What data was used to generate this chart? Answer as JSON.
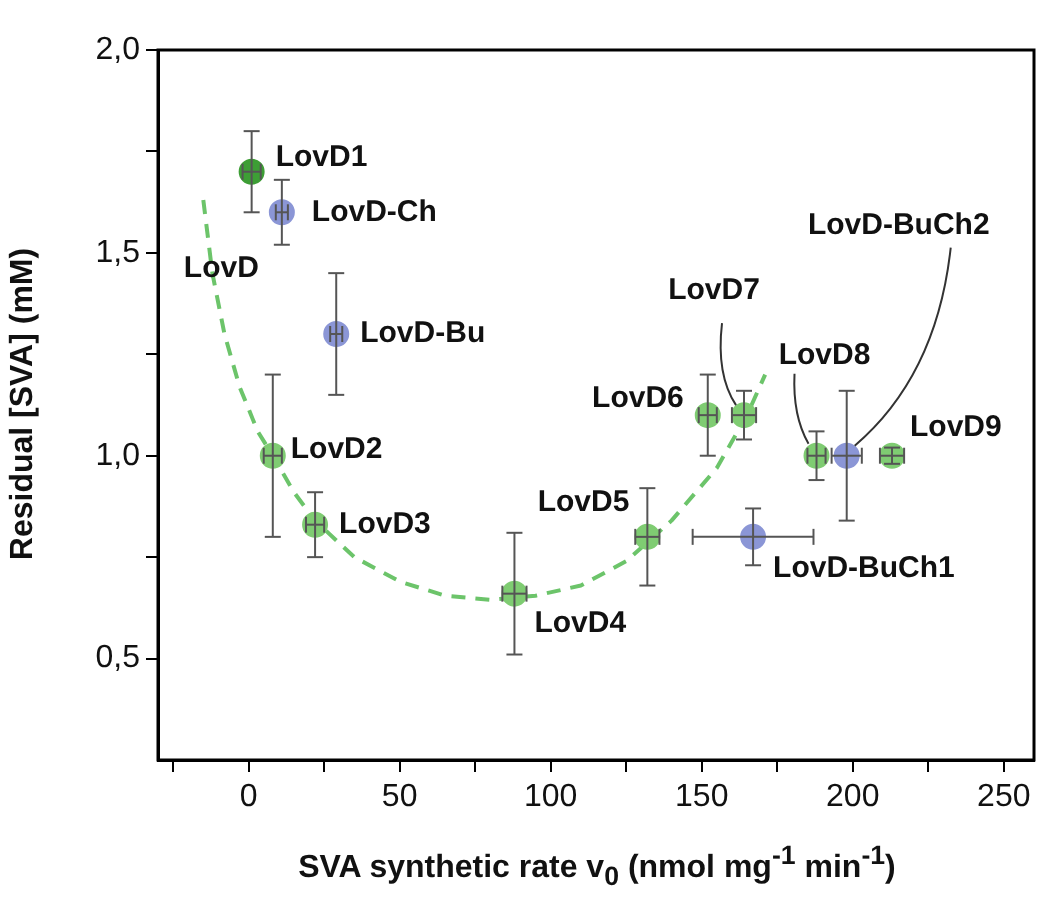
{
  "chart_data": {
    "type": "scatter",
    "xlabel": "SVA synthetic rate v$_{0}$ (nmol mg$^{-1}$ min$^{-1}$)",
    "ylabel": "Residual [SVA] (mM)",
    "xlim": [
      -30,
      260
    ],
    "ylim": [
      0.25,
      2.0
    ],
    "xticks": [
      {
        "value": -25,
        "label": null
      },
      0,
      {
        "value": 25,
        "label": null
      },
      50,
      {
        "value": 75,
        "label": null
      },
      100,
      {
        "value": 125,
        "label": null
      },
      150,
      {
        "value": 175,
        "label": null
      },
      200,
      {
        "value": 225,
        "label": null
      },
      250
    ],
    "yticks": [
      {
        "value": 0.5,
        "label": "0,5"
      },
      {
        "value": 0.75,
        "label": null
      },
      {
        "value": 1.0,
        "label": "1,0"
      },
      {
        "value": 1.25,
        "label": null
      },
      {
        "value": 1.5,
        "label": "1,5"
      },
      {
        "value": 1.75,
        "label": null
      },
      {
        "value": 2.0,
        "label": "2,0"
      }
    ],
    "grid": false,
    "legend": false,
    "marker": "circle",
    "series": [
      {
        "x": [
          1,
          11,
          29,
          8,
          22,
          88,
          132,
          167,
          152,
          164,
          188,
          198,
          213
        ],
        "values": [
          1.7,
          1.6,
          1.3,
          1.0,
          0.83,
          0.66,
          0.8,
          0.8,
          1.1,
          1.1,
          1.0,
          1.0,
          1.0
        ],
        "colors": [
          "#3d9e35",
          "#8b96d6",
          "#8b96d6",
          "#7fcc72",
          "#7fcc72",
          "#7fcc72",
          "#7fcc72",
          "#8b96d6",
          "#7fcc72",
          "#7fcc72",
          "#7fcc72",
          "#8b96d6",
          "#7fcc72"
        ],
        "errors": [
          0.1,
          0.08,
          0.15,
          0.2,
          0.08,
          0.15,
          0.12,
          0.07,
          0.1,
          0.06,
          0.06,
          0.16,
          0.02
        ],
        "xerrors": [
          3,
          2,
          2,
          3,
          3,
          4,
          4,
          20,
          3,
          4,
          3,
          5,
          4
        ]
      },
      {
        "type": "line",
        "color": "#6cc46a",
        "line_style": "dashed",
        "marker": "none",
        "x": [
          -15,
          -12,
          -8,
          -3,
          3,
          8,
          15,
          22,
          35,
          50,
          65,
          80,
          95,
          110,
          125,
          140,
          155,
          165,
          171
        ],
        "values": [
          1.63,
          1.45,
          1.3,
          1.17,
          1.06,
          1.0,
          0.91,
          0.84,
          0.75,
          0.69,
          0.655,
          0.645,
          0.655,
          0.68,
          0.74,
          0.84,
          0.97,
          1.1,
          1.2
        ]
      }
    ],
    "annotations": [
      {
        "text": "LovD1",
        "x": 1,
        "y": 1.7
      },
      {
        "text": "LovD-Ch",
        "x": 11,
        "y": 1.6
      },
      {
        "text": "LovD",
        "x": -15,
        "y": 1.5
      },
      {
        "text": "LovD-Bu",
        "x": 29,
        "y": 1.3
      },
      {
        "text": "LovD2",
        "x": 8,
        "y": 1.0
      },
      {
        "text": "LovD3",
        "x": 22,
        "y": 0.83
      },
      {
        "text": "LovD4",
        "x": 88,
        "y": 0.66
      },
      {
        "text": "LovD5",
        "x": 132,
        "y": 0.8
      },
      {
        "text": "LovD6",
        "x": 152,
        "y": 1.1
      },
      {
        "text": "LovD7",
        "x": 164,
        "y": 1.1
      },
      {
        "text": "LovD8",
        "x": 188,
        "y": 1.0
      },
      {
        "text": "LovD-BuCh2",
        "x": 198,
        "y": 1.0
      },
      {
        "text": "LovD9",
        "x": 213,
        "y": 1.0
      },
      {
        "text": "LovD-BuCh1",
        "x": 167,
        "y": 0.8
      }
    ]
  }
}
